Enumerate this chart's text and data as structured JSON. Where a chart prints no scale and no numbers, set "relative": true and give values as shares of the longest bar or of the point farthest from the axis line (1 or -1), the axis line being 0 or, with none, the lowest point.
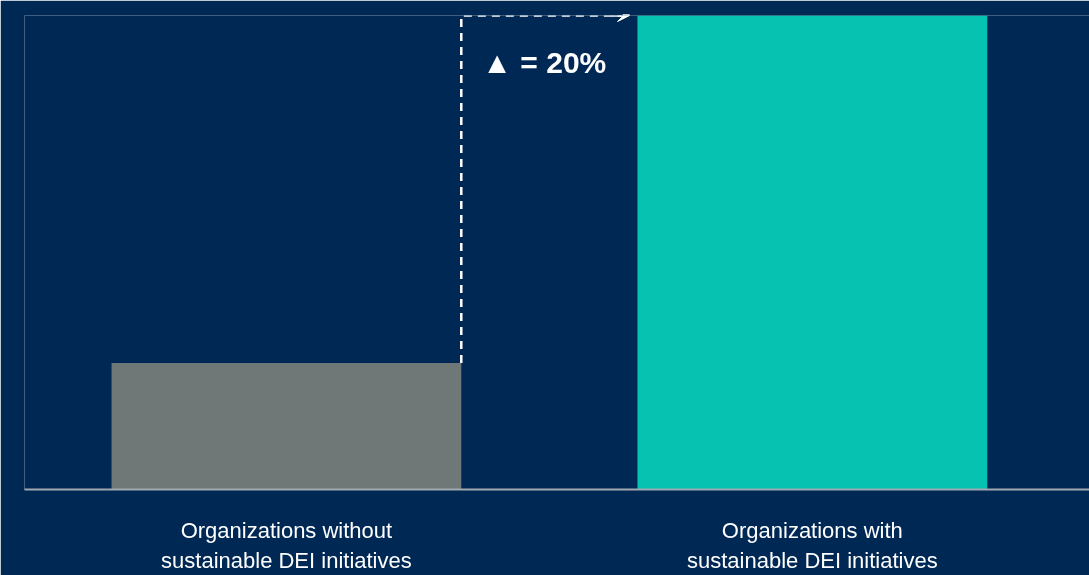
{
  "chart_data": {
    "type": "bar",
    "relative": true,
    "categories": [
      "Organizations without\nsustainable DEI initiatives",
      "Organizations with\nsustainable DEI initiatives"
    ],
    "values": [
      0.267,
      1
    ],
    "colors": [
      "#6f7777",
      "#06c3b1"
    ],
    "annotations": [
      "▲ = 20%"
    ],
    "grid": false
  }
}
